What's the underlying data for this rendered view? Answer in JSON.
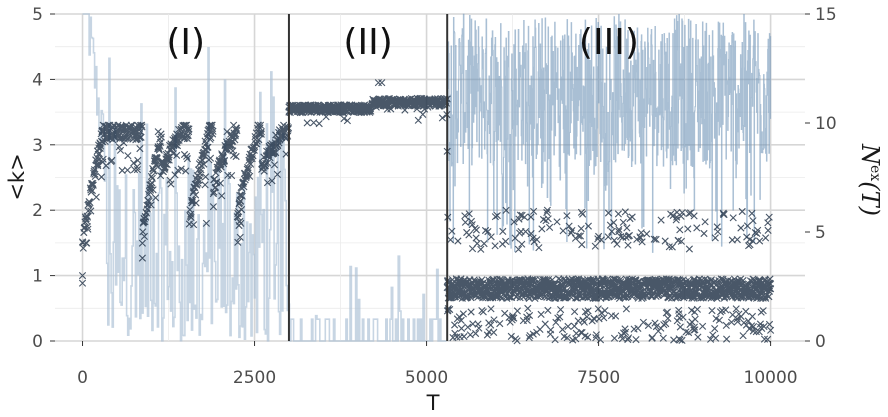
{
  "chart_data": {
    "type": "scatter",
    "xlabel": "T",
    "ylabel": "<k>",
    "ylabel_right": {
      "base": "N",
      "sup": "ex",
      "arg": "(T)"
    },
    "xlim": [
      -400,
      10500
    ],
    "ylim": [
      0,
      5
    ],
    "ylim_right": [
      0,
      15
    ],
    "x_ticks": [
      0,
      2500,
      5000,
      7500,
      10000
    ],
    "x_tick_labels": [
      "0",
      "2500",
      "5000",
      "7500",
      "10000"
    ],
    "y_ticks": [
      0,
      1,
      2,
      3,
      4,
      5
    ],
    "y_tick_labels": [
      "0",
      "1",
      "2",
      "3",
      "4",
      "5"
    ],
    "y_right_ticks": [
      0,
      5,
      10,
      15
    ],
    "y_right_tick_labels": [
      "0",
      "5",
      "10",
      "15"
    ],
    "grid": true,
    "phase_boundaries": [
      3000,
      5300
    ],
    "phases": [
      {
        "label": "(I)",
        "x_start": 0,
        "x_end": 3000
      },
      {
        "label": "(II)",
        "x_start": 3000,
        "x_end": 5300
      },
      {
        "label": "(III)",
        "x_start": 5300,
        "x_end": 10000
      }
    ],
    "series": [
      {
        "style": "cross markers, dark navy",
        "color": "#1b2d42",
        "axis": "left",
        "phase_levels": [
          {
            "x": [
              0,
              3000
            ],
            "low": 1.4,
            "high": 3.2,
            "jump_level": 3.2
          },
          {
            "x": [
              3000,
              5300
            ],
            "center": 3.55,
            "spread": 0.12,
            "spikes_to": 3.95
          },
          {
            "x": [
              5300,
              10000
            ],
            "center": 0.8,
            "spread": 0.15,
            "upper_band": [
              1.4,
              2.0
            ],
            "lower_band": [
              0,
              0.5
            ]
          }
        ],
        "sample_points": [
          [
            0,
            1.0
          ],
          [
            50,
            1.5
          ],
          [
            200,
            2.2
          ],
          [
            350,
            3.1
          ],
          [
            500,
            3.2
          ],
          [
            800,
            3.2
          ],
          [
            900,
            1.6
          ],
          [
            1100,
            3.2
          ],
          [
            1500,
            2.6
          ],
          [
            1800,
            1.8
          ],
          [
            2100,
            3.2
          ],
          [
            2300,
            1.8
          ],
          [
            2600,
            3.2
          ],
          [
            3000,
            3.5
          ],
          [
            3500,
            3.55
          ],
          [
            3800,
            3.4
          ],
          [
            4300,
            3.95
          ],
          [
            4800,
            3.6
          ],
          [
            5300,
            3.7
          ],
          [
            5300,
            2.9
          ],
          [
            5500,
            0.8
          ],
          [
            6000,
            1.9
          ],
          [
            7000,
            0.8
          ],
          [
            7500,
            1.6
          ],
          [
            8500,
            0.8
          ],
          [
            10000,
            0.8
          ]
        ]
      },
      {
        "style": "step line, light steel blue",
        "color": "#4c7ba3",
        "axis": "right",
        "phase_levels": [
          {
            "x": [
              0,
              3000
            ],
            "range": [
              0,
              15
            ],
            "typical": 4
          },
          {
            "x": [
              3000,
              5300
            ],
            "range": [
              0,
              3
            ],
            "typical": 0.5
          },
          {
            "x": [
              5300,
              10000
            ],
            "range": [
              8,
              15
            ],
            "typical": 12
          }
        ]
      }
    ]
  }
}
